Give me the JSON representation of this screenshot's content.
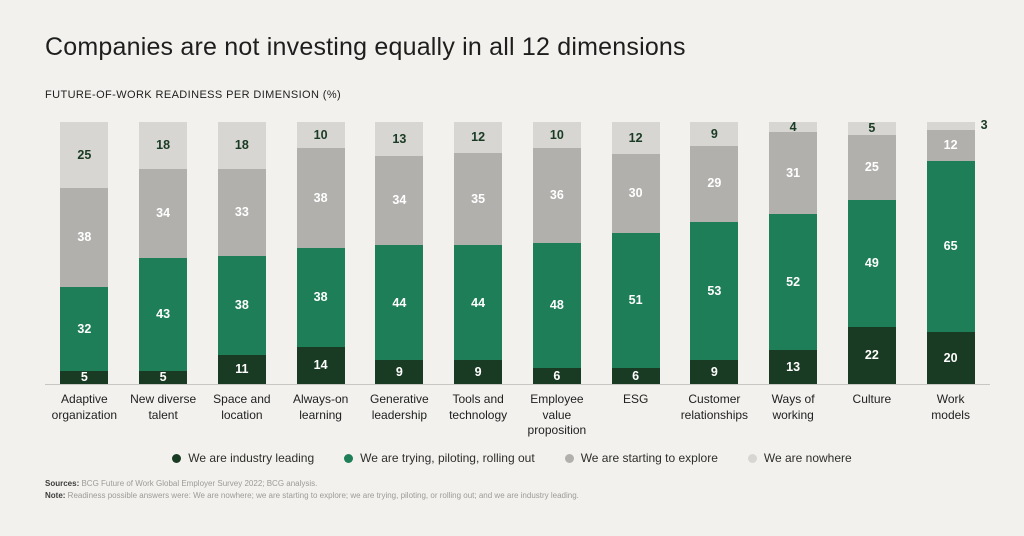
{
  "page": {
    "title": "Companies are not investing equally in all 12 dimensions",
    "subtitle": "FUTURE-OF-WORK READINESS PER DIMENSION (%)"
  },
  "chart_data": {
    "type": "bar",
    "stacked": true,
    "unit": "%",
    "ylim": [
      0,
      100
    ],
    "grid": false,
    "legend_position": "bottom",
    "value_labels": true,
    "categories": [
      "Adaptive organization",
      "New diverse talent",
      "Space and location",
      "Always-on learning",
      "Generative leadership",
      "Tools and technology",
      "Employee value proposition",
      "ESG",
      "Customer relationships",
      "Ways of working",
      "Culture",
      "Work models"
    ],
    "series": [
      {
        "name": "We are industry leading",
        "color": "#1a3b23",
        "label_color": "#ffffff",
        "values": [
          5,
          5,
          11,
          14,
          9,
          9,
          6,
          6,
          9,
          13,
          22,
          20
        ]
      },
      {
        "name": "We are trying, piloting, rolling out",
        "color": "#1e7e57",
        "label_color": "#ffffff",
        "values": [
          32,
          43,
          38,
          38,
          44,
          44,
          48,
          51,
          53,
          52,
          49,
          65
        ]
      },
      {
        "name": "We are starting to explore",
        "color": "#b1b0ad",
        "label_color": "#ffffff",
        "values": [
          38,
          34,
          33,
          38,
          34,
          35,
          36,
          30,
          29,
          31,
          25,
          12
        ]
      },
      {
        "name": "We are nowhere",
        "color": "#d7d6d3",
        "label_color": "#1a3b23",
        "values": [
          25,
          18,
          18,
          10,
          13,
          12,
          10,
          12,
          9,
          4,
          5,
          3
        ]
      }
    ]
  },
  "footer": {
    "sources_label": "Sources:",
    "sources_text": " BCG Future of Work Global Employer Survey 2022; BCG analysis.",
    "note_label": "Note:",
    "note_text": " Readiness possible answers were: We are nowhere; we are starting to explore; we are trying, piloting, or rolling out; and we are industry leading."
  }
}
